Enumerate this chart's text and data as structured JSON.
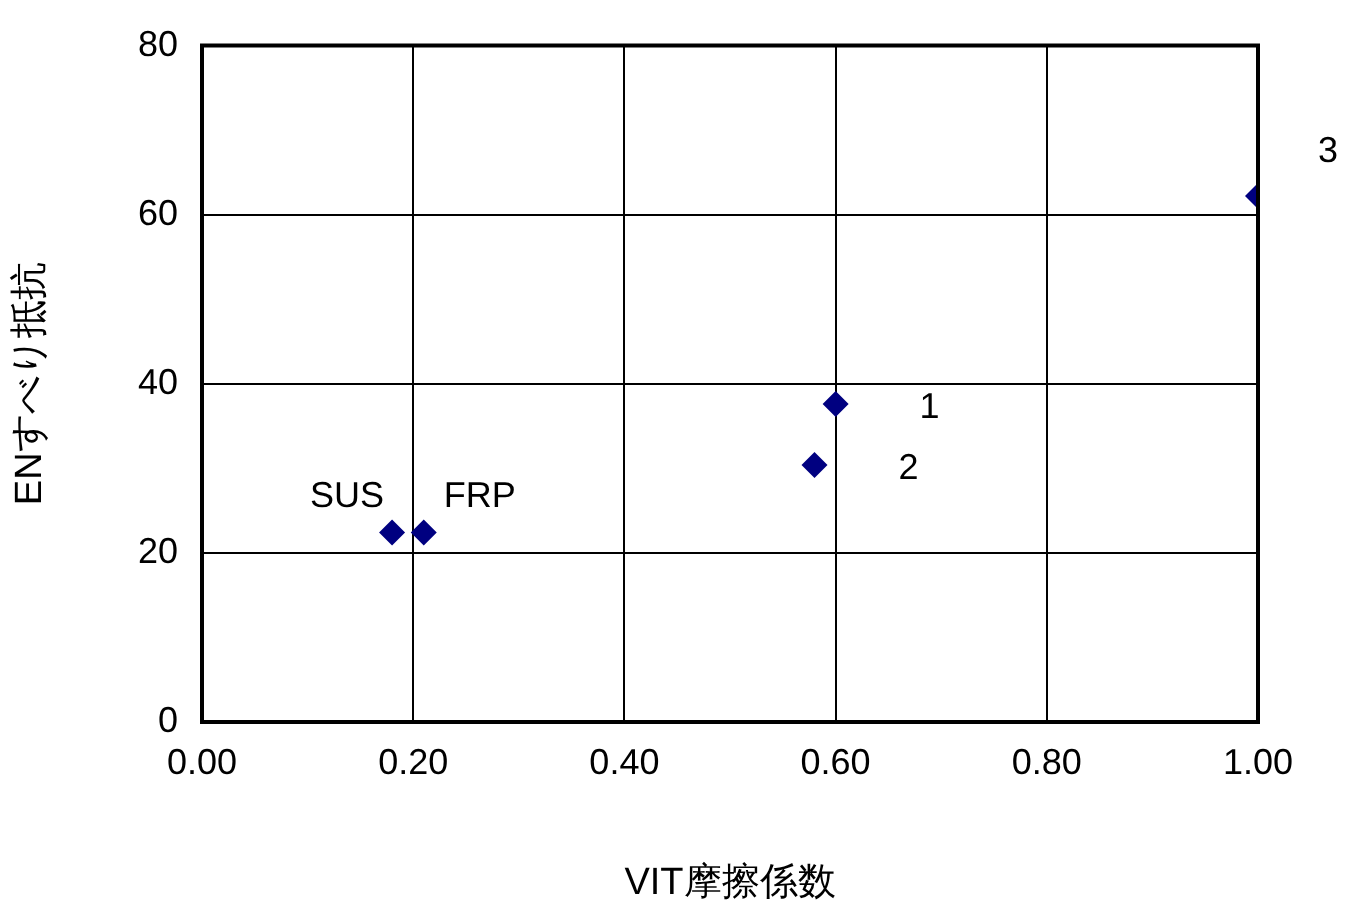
{
  "chart_data": {
    "type": "scatter",
    "xlabel": "VIT摩擦係数",
    "ylabel": "ENすべり抵抗",
    "x": [
      0.18,
      0.21,
      0.6,
      0.58,
      1.0
    ],
    "values": [
      22.4,
      22.4,
      37.6,
      30.4,
      62.2
    ],
    "color": "#000080",
    "marker": "diamond",
    "grid": true,
    "legend": false,
    "xlim": [
      0,
      1
    ],
    "xticks": [
      {
        "value": 0,
        "label": "0.00"
      },
      {
        "value": 0.2,
        "label": "0.20"
      },
      {
        "value": 0.4,
        "label": "0.40"
      },
      {
        "value": 0.6,
        "label": "0.60"
      },
      {
        "value": 0.8,
        "label": "0.80"
      },
      {
        "value": 1,
        "label": "1.00"
      }
    ],
    "ylim": [
      0,
      80
    ],
    "yticks": [
      0,
      20,
      40,
      60,
      80
    ],
    "annotations": [
      {
        "text": "SUS",
        "x": 0.18,
        "y": 22.4
      },
      {
        "text": "FRP",
        "x": 0.21,
        "y": 22.4
      },
      {
        "text": "1",
        "x": 0.6,
        "y": 37.6
      },
      {
        "text": "2",
        "x": 0.58,
        "y": 30.4
      },
      {
        "text": "3",
        "x": 1.0,
        "y": 62.2
      }
    ]
  }
}
